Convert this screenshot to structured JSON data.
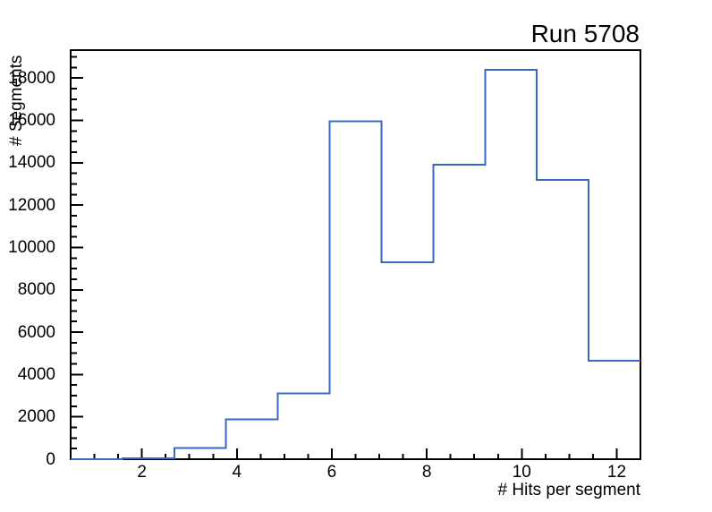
{
  "window": {
    "background": "#ffffff"
  },
  "colors": {
    "line": "#3a68be",
    "axis": "#000000",
    "text": "#000000",
    "background": "#ffffff"
  },
  "chart_data": {
    "type": "histogram-step",
    "title": "Run 5708",
    "xlabel": "# Hits per segment",
    "ylabel": "# Segments",
    "xlim": [
      0.5,
      12.5
    ],
    "ylim": [
      0,
      19320
    ],
    "bins": 11,
    "bin_edges": [
      0.5,
      1.591,
      2.682,
      3.773,
      4.864,
      5.955,
      7.045,
      8.136,
      9.227,
      10.318,
      11.409,
      12.5
    ],
    "values": [
      10,
      40,
      530,
      1880,
      3100,
      15950,
      9300,
      13900,
      18400,
      13200,
      4650
    ],
    "xticks_major": [
      2,
      4,
      6,
      8,
      10,
      12
    ],
    "xtick_labels": [
      "2",
      "4",
      "6",
      "8",
      "10",
      "12"
    ],
    "xtick_minor_step": 0.5,
    "yticks_major": [
      0,
      2000,
      4000,
      6000,
      8000,
      10000,
      12000,
      14000,
      16000,
      18000
    ],
    "ytick_labels": [
      "0",
      "2000",
      "4000",
      "6000",
      "8000",
      "10000",
      "12000",
      "14000",
      "16000",
      "18000"
    ],
    "ytick_minor_step": 500,
    "grid": false,
    "legend": null
  }
}
